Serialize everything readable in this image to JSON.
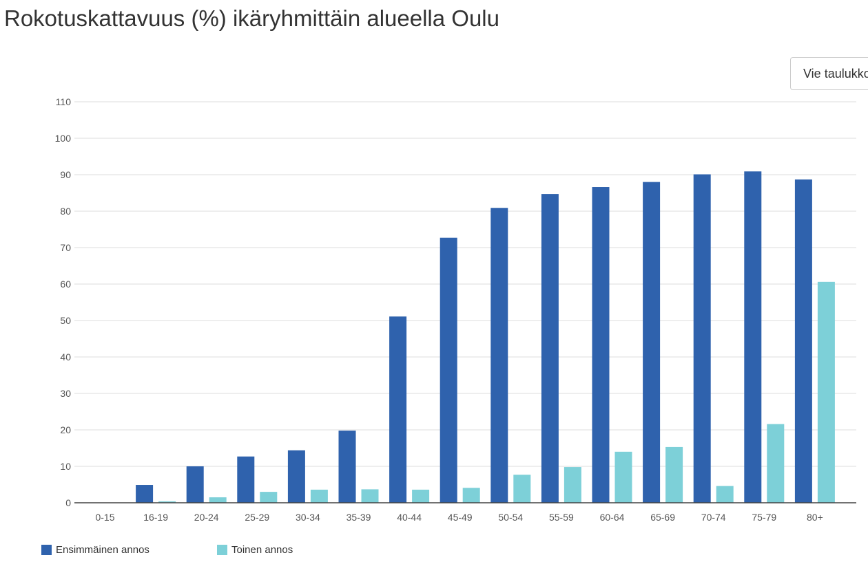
{
  "header": {
    "title": "Rokotuskattavuus (%) ikäryhmittäin alueella Oulu",
    "export_label": "Vie taulukkoon"
  },
  "colors": {
    "series1": "#2f62ad",
    "series2": "#7dd0d8",
    "grid": "#dcdcdc",
    "axis": "#444444"
  },
  "chart_data": {
    "type": "bar",
    "title": "Rokotuskattavuus (%) ikäryhmittäin alueella Oulu",
    "xlabel": "",
    "ylabel": "",
    "ylim": [
      0,
      110
    ],
    "yticks": [
      0,
      10,
      20,
      30,
      40,
      50,
      60,
      70,
      80,
      90,
      100,
      110
    ],
    "grid": true,
    "legend_position": "bottom-left",
    "categories": [
      "0-15",
      "16-19",
      "20-24",
      "25-29",
      "30-34",
      "35-39",
      "40-44",
      "45-49",
      "50-54",
      "55-59",
      "60-64",
      "65-69",
      "70-74",
      "75-79",
      "80+"
    ],
    "series": [
      {
        "name": "Ensimmäinen annos",
        "values": [
          0,
          4.9,
          10.0,
          12.7,
          14.4,
          19.8,
          51.1,
          72.7,
          80.9,
          84.7,
          86.6,
          88.0,
          90.1,
          90.9,
          88.7
        ]
      },
      {
        "name": "Toinen annos",
        "values": [
          0,
          0.4,
          1.5,
          3.0,
          3.6,
          3.7,
          3.6,
          4.1,
          7.7,
          9.8,
          14.0,
          15.3,
          4.6,
          21.6,
          60.6
        ]
      }
    ]
  }
}
